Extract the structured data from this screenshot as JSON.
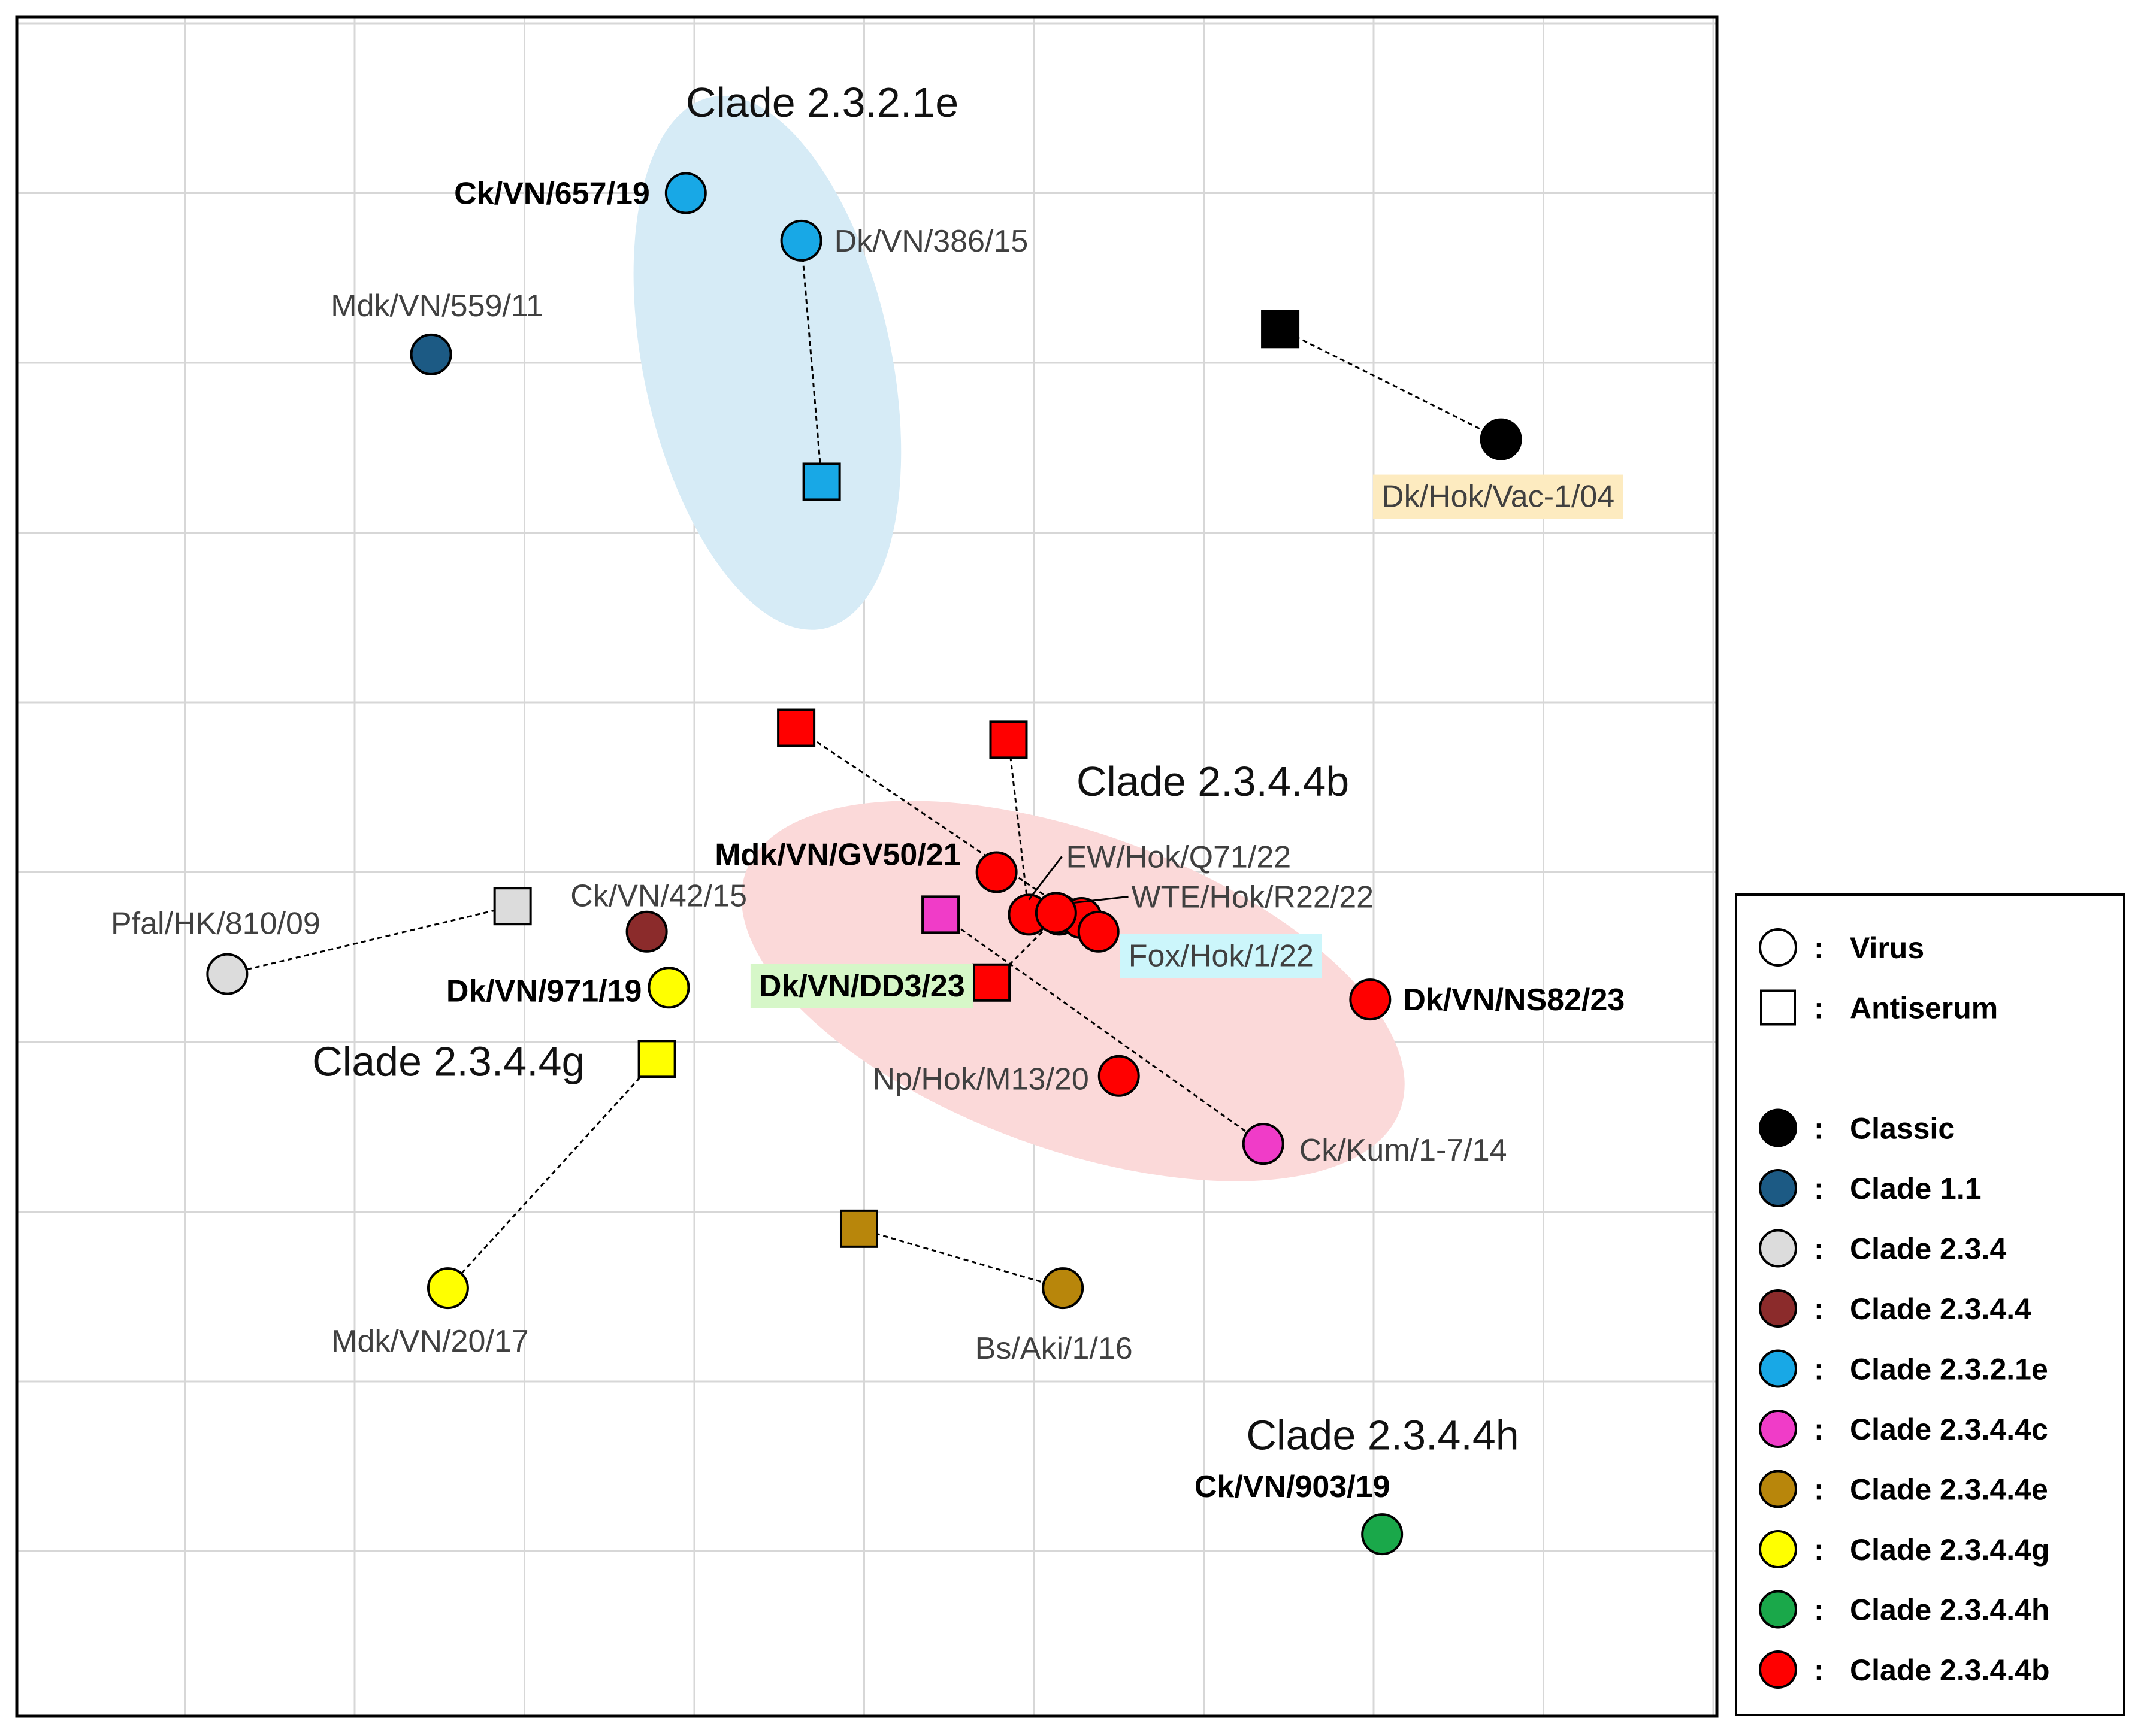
{
  "chart_data": {
    "type": "scatter",
    "title": "",
    "xlabel": "",
    "ylabel": "",
    "grid": true,
    "xlim": [
      0,
      10
    ],
    "ylim": [
      0,
      10
    ],
    "colors": {
      "classic": "#000000",
      "clade_1_1": "#1c5a84",
      "clade_2_3_4": "#dcdcdc",
      "clade_2_3_4_4": "#8b2b2b",
      "clade_2_3_2_1e": "#18a8e6",
      "clade_2_3_4_4c": "#f03cc8",
      "clade_2_3_4_4e": "#b8860b",
      "clade_2_3_4_4g": "#ffff00",
      "clade_2_3_4_4h": "#1aa84a",
      "clade_2_3_4_4b": "#ff0000"
    },
    "clusters": [
      {
        "name": "Clade 2.3.2.1e",
        "cx": 4.43,
        "cy": 8.0,
        "rx": 0.73,
        "ry": 1.6,
        "rotate": -12,
        "color": "#d6ebf6"
      },
      {
        "name": "Clade 2.3.4.4b",
        "cx": 6.23,
        "cy": 4.3,
        "rx": 2.05,
        "ry": 0.93,
        "rotate": 20,
        "color": "#fbd9d9"
      }
    ],
    "clade_titles": [
      {
        "text": "Clade 2.3.2.1e",
        "x": 3.95,
        "y": 9.45
      },
      {
        "text": "Clade 2.3.4.4b",
        "x": 6.25,
        "y": 5.45
      },
      {
        "text": "Clade 2.3.4.4g",
        "x": 1.75,
        "y": 3.8
      },
      {
        "text": "Clade 2.3.4.4h",
        "x": 7.25,
        "y": 1.6
      }
    ],
    "points": [
      {
        "id": "ck-vn-657-19",
        "label": "Ck/VN/657/19",
        "x": 3.95,
        "y": 9.0,
        "shape": "virus",
        "clade": "clade_2_3_2_1e",
        "bold": true
      },
      {
        "id": "dk-vn-386-15",
        "label": "Dk/VN/386/15",
        "x": 4.63,
        "y": 8.72,
        "shape": "virus",
        "clade": "clade_2_3_2_1e",
        "bold": false
      },
      {
        "id": "as-dk-vn-386-15",
        "label": "",
        "x": 4.75,
        "y": 7.3,
        "shape": "antiserum",
        "clade": "clade_2_3_2_1e"
      },
      {
        "id": "mdk-vn-559-11",
        "label": "Mdk/VN/559/11",
        "x": 2.45,
        "y": 8.05,
        "shape": "virus",
        "clade": "clade_1_1",
        "bold": false
      },
      {
        "id": "as-classic",
        "label": "",
        "x": 7.45,
        "y": 8.2,
        "shape": "antiserum",
        "clade": "classic"
      },
      {
        "id": "dk-hok-vac-1-04",
        "label": "Dk/Hok/Vac-1/04",
        "x": 8.75,
        "y": 7.55,
        "shape": "virus",
        "clade": "classic",
        "bold": false,
        "highlight": "#fdebc0"
      },
      {
        "id": "as-2344b-a",
        "label": "",
        "x": 4.6,
        "y": 5.85,
        "shape": "antiserum",
        "clade": "clade_2_3_4_4b"
      },
      {
        "id": "as-2344b-b",
        "label": "",
        "x": 5.85,
        "y": 5.78,
        "shape": "antiserum",
        "clade": "clade_2_3_4_4b"
      },
      {
        "id": "as-2344b-c",
        "label": "",
        "x": 5.75,
        "y": 4.35,
        "shape": "antiserum",
        "clade": "clade_2_3_4_4b"
      },
      {
        "id": "as-2344c",
        "label": "",
        "x": 5.45,
        "y": 4.75,
        "shape": "antiserum",
        "clade": "clade_2_3_4_4c"
      },
      {
        "id": "mdk-vn-gv50-21",
        "label": "Mdk/VN/GV50/21",
        "x": 5.78,
        "y": 5.0,
        "shape": "virus",
        "clade": "clade_2_3_4_4b",
        "bold": true
      },
      {
        "id": "ew-hok-q71-22",
        "label": "EW/Hok/Q71/22",
        "x": 5.97,
        "y": 4.75,
        "shape": "virus",
        "clade": "clade_2_3_4_4b",
        "bold": false
      },
      {
        "id": "wte-hok-r22-22",
        "label": "WTE/Hok/R22/22",
        "x": 6.15,
        "y": 4.75,
        "shape": "virus",
        "clade": "clade_2_3_4_4b",
        "bold": false
      },
      {
        "id": "r-virus-3",
        "label": "",
        "x": 6.28,
        "y": 4.73,
        "shape": "virus",
        "clade": "clade_2_3_4_4b",
        "bold": false
      },
      {
        "id": "fox-hok-1-22",
        "label": "Fox/Hok/1/22",
        "x": 6.38,
        "y": 4.65,
        "shape": "virus",
        "clade": "clade_2_3_4_4b",
        "bold": false,
        "highlight": "#ccf6fb"
      },
      {
        "id": "r-virus-1",
        "label": "",
        "x": 6.13,
        "y": 4.76,
        "shape": "virus",
        "clade": "clade_2_3_4_4b",
        "bold": false
      },
      {
        "id": "dk-vn-dd3-23",
        "label": "Dk/VN/DD3/23",
        "x": 5.77,
        "y": 4.35,
        "shape": "none",
        "clade": "clade_2_3_4_4b",
        "bold": true,
        "highlight": "#d6f7c8"
      },
      {
        "id": "dk-vn-ns82-23",
        "label": "Dk/VN/NS82/23",
        "x": 7.98,
        "y": 4.25,
        "shape": "virus",
        "clade": "clade_2_3_4_4b",
        "bold": true
      },
      {
        "id": "np-hok-m13-20",
        "label": "Np/Hok/M13/20",
        "x": 6.5,
        "y": 3.8,
        "shape": "virus",
        "clade": "clade_2_3_4_4b",
        "bold": false
      },
      {
        "id": "ck-kum-1-7-14",
        "label": "Ck/Kum/1-7/14",
        "x": 7.35,
        "y": 3.4,
        "shape": "virus",
        "clade": "clade_2_3_4_4c",
        "bold": false
      },
      {
        "id": "as-234",
        "label": "",
        "x": 2.93,
        "y": 4.8,
        "shape": "antiserum",
        "clade": "clade_2_3_4"
      },
      {
        "id": "pfal-hk-810-09",
        "label": "Pfal/HK/810/09",
        "x": 1.25,
        "y": 4.4,
        "shape": "virus",
        "clade": "clade_2_3_4",
        "bold": false
      },
      {
        "id": "ck-vn-42-15",
        "label": "Ck/VN/42/15",
        "x": 3.72,
        "y": 4.65,
        "shape": "virus",
        "clade": "clade_2_3_4_4",
        "bold": false
      },
      {
        "id": "dk-vn-971-19",
        "label": "Dk/VN/971/19",
        "x": 3.85,
        "y": 4.32,
        "shape": "virus",
        "clade": "clade_2_3_4_4g",
        "bold": true
      },
      {
        "id": "as-2344g",
        "label": "",
        "x": 3.78,
        "y": 3.9,
        "shape": "antiserum",
        "clade": "clade_2_3_4_4g"
      },
      {
        "id": "mdk-vn-20-17",
        "label": "Mdk/VN/20/17",
        "x": 2.55,
        "y": 2.55,
        "shape": "virus",
        "clade": "clade_2_3_4_4g",
        "bold": false
      },
      {
        "id": "as-2344e",
        "label": "",
        "x": 4.97,
        "y": 2.9,
        "shape": "antiserum",
        "clade": "clade_2_3_4_4e"
      },
      {
        "id": "bs-aki-1-16",
        "label": "Bs/Aki/1/16",
        "x": 6.17,
        "y": 2.55,
        "shape": "virus",
        "clade": "clade_2_3_4_4e",
        "bold": false
      },
      {
        "id": "ck-vn-903-19",
        "label": "Ck/VN/903/19",
        "x": 8.05,
        "y": 1.1,
        "shape": "virus",
        "clade": "clade_2_3_4_4h",
        "bold": true
      }
    ],
    "links": [
      {
        "from": "dk-vn-386-15",
        "to": "as-dk-vn-386-15"
      },
      {
        "from": "as-classic",
        "to": "dk-hok-vac-1-04"
      },
      {
        "from": "as-2344b-a",
        "to": "fox-hok-1-22"
      },
      {
        "from": "as-2344b-b",
        "to": "ew-hok-q71-22"
      },
      {
        "from": "as-2344b-c",
        "to": "wte-hok-r22-22"
      },
      {
        "from": "as-2344c",
        "to": "ck-kum-1-7-14"
      },
      {
        "from": "as-234",
        "to": "pfal-hk-810-09"
      },
      {
        "from": "as-2344g",
        "to": "mdk-vn-20-17"
      },
      {
        "from": "as-2344e",
        "to": "bs-aki-1-16"
      }
    ],
    "legend": {
      "placement": "bottom-right",
      "shape_items": [
        {
          "shape": "virus",
          "label": "Virus"
        },
        {
          "shape": "antiserum",
          "label": "Antiserum"
        }
      ],
      "clade_items": [
        {
          "key": "classic",
          "label": "Classic"
        },
        {
          "key": "clade_1_1",
          "label": "Clade 1.1"
        },
        {
          "key": "clade_2_3_4",
          "label": "Clade 2.3.4"
        },
        {
          "key": "clade_2_3_4_4",
          "label": "Clade 2.3.4.4"
        },
        {
          "key": "clade_2_3_2_1e",
          "label": "Clade 2.3.2.1e"
        },
        {
          "key": "clade_2_3_4_4c",
          "label": "Clade 2.3.4.4c"
        },
        {
          "key": "clade_2_3_4_4e",
          "label": "Clade 2.3.4.4e"
        },
        {
          "key": "clade_2_3_4_4g",
          "label": "Clade 2.3.4.4g"
        },
        {
          "key": "clade_2_3_4_4h",
          "label": "Clade 2.3.4.4h"
        },
        {
          "key": "clade_2_3_4_4b",
          "label": "Clade 2.3.4.4b"
        }
      ],
      "separator": ":"
    }
  }
}
